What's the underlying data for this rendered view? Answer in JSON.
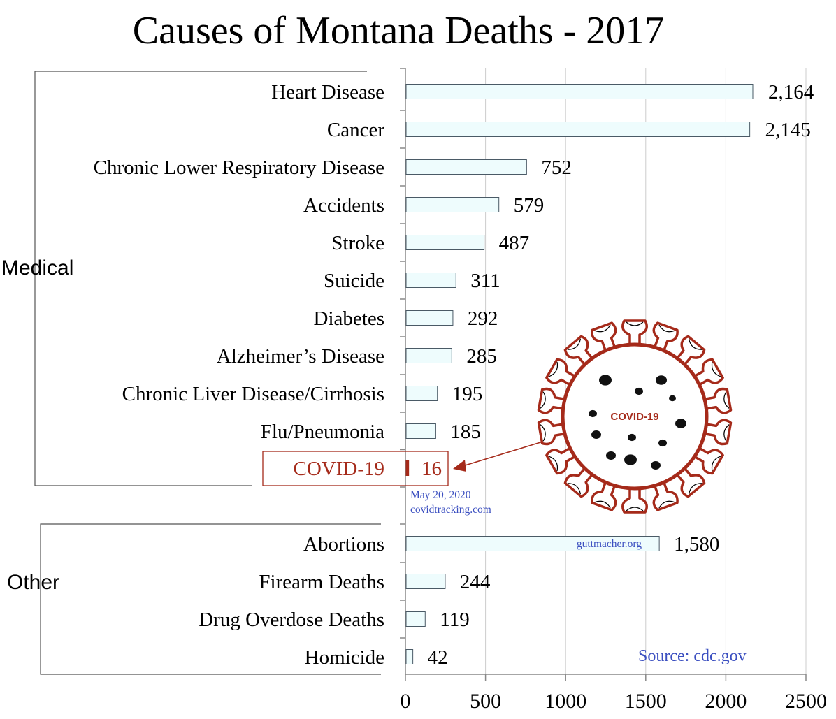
{
  "chart_data": {
    "type": "bar",
    "orientation": "horizontal",
    "title": "Causes of Montana Deaths - 2017",
    "xlim": [
      0,
      2500
    ],
    "x_ticks": [
      0,
      500,
      1000,
      1500,
      2000,
      2500
    ],
    "grid": true,
    "groups": [
      {
        "name": "Medical",
        "items": [
          0,
          1,
          2,
          3,
          4,
          5,
          6,
          7,
          8,
          9,
          10
        ]
      },
      {
        "name": "Other",
        "items": [
          11,
          12,
          13,
          14
        ]
      }
    ],
    "categories": [
      "Heart Disease",
      "Cancer",
      "Chronic Lower Respiratory Disease",
      "Accidents",
      "Stroke",
      "Suicide",
      "Diabetes",
      "Alzheimer’s Disease",
      "Chronic Liver Disease/Cirrhosis",
      "Flu/Pneumonia",
      "COVID-19",
      "Abortions",
      "Firearm Deaths",
      "Drug Overdose Deaths",
      "Homicide"
    ],
    "values": [
      2164,
      2145,
      752,
      579,
      487,
      311,
      292,
      285,
      195,
      185,
      16,
      1580,
      244,
      119,
      42
    ],
    "value_labels": [
      "2,164",
      "2,145",
      "752",
      "579",
      "487",
      "311",
      "292",
      "285",
      "195",
      "185",
      "16",
      "1,580",
      "244",
      "119",
      "42"
    ],
    "highlight": {
      "category": "COVID-19",
      "color": "#a52a1a",
      "note_date": "May 20, 2020",
      "note_source": "covidtracking.com",
      "virus_label": "COVID-19"
    },
    "in_bar_note": {
      "category": "Abortions",
      "text": "guttmacher.org"
    },
    "source": "Source: cdc.gov",
    "colors": {
      "bar_fill": "#eefcfd",
      "bar_stroke": "#4a5a66",
      "covid": "#a52a1a",
      "note_blue": "#3b4fc0",
      "grid": "#cccccc"
    }
  }
}
